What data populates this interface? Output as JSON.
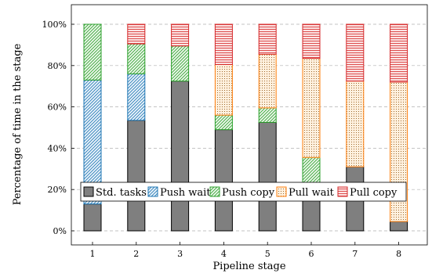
{
  "chart_data": {
    "type": "bar",
    "stacked": true,
    "xlabel": "Pipeline stage",
    "ylabel": "Percentage of time in the stage",
    "categories": [
      "1",
      "2",
      "3",
      "4",
      "5",
      "6",
      "7",
      "8"
    ],
    "ylim": [
      0,
      100
    ],
    "yticks": [
      "0%",
      "20%",
      "40%",
      "60%",
      "80%",
      "100%"
    ],
    "grid": "horizontal dashed",
    "legend_position": "bottom-center inside plot",
    "series": [
      {
        "name": "Std. tasks",
        "values": [
          13,
          53.5,
          72.5,
          49,
          52.5,
          23,
          31,
          4.5
        ],
        "color": "#7f7f7f",
        "pattern": "solid"
      },
      {
        "name": "Push wait",
        "values": [
          60,
          22.5,
          0,
          0,
          0,
          0,
          0,
          0
        ],
        "color": "#1f77b4",
        "pattern": "diagonal-lines"
      },
      {
        "name": "Push copy",
        "values": [
          27,
          14.5,
          17,
          7,
          7,
          12.5,
          0,
          0
        ],
        "color": "#2ca02c",
        "pattern": "diagonal-lines"
      },
      {
        "name": "Pull wait",
        "values": [
          0,
          0,
          0,
          24.5,
          26,
          48,
          41.5,
          67.5
        ],
        "color": "#ff7f0e",
        "pattern": "dots"
      },
      {
        "name": "Pull copy",
        "values": [
          0,
          9.5,
          10.5,
          19.5,
          14.5,
          16.5,
          27.5,
          28
        ],
        "color": "#d62728",
        "pattern": "horizontal-lines"
      }
    ]
  }
}
